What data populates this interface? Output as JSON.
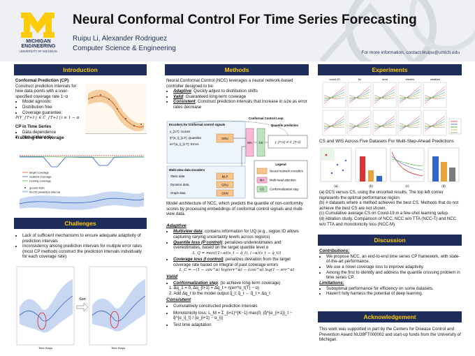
{
  "header": {
    "logo_line1": "MICHIGAN",
    "logo_line2": "ENGINEERING",
    "logo_line3": "UNIVERSITY OF MICHIGAN",
    "title": "Neural Conformal Control For Time Series Forecasting",
    "authors": "Ruipu Li, Alexander Rodriguez",
    "affiliation": "Computer Science & Engineering",
    "contact": "For more information, contact liruipu@umich.edu"
  },
  "introduction": {
    "heading": "Introduction",
    "cp_label": "Conformal Prediction (CP)",
    "cp_text": ": Construct prediction intervals for new data points with a user-specified coverage rate 1−α",
    "cp_bullets": [
      "Model agnostic",
      "Distribution free",
      "Coverage guarantee:"
    ],
    "guarantee": "P(Y_{T+1} ∈ Ĉ_{T+1}) ≥ 1 − α",
    "ts_label": "CP in Time Series",
    "ts_bullets": [
      "Data dependence",
      "Non-stationarity"
    ],
    "tracking_heading": "Tracking the coverage",
    "tracking_legend": [
      "target coverage",
      "realized coverage",
      "running coverage"
    ],
    "interval_legend": [
      "ground truth",
      "90.0% prediction interval"
    ]
  },
  "challenges": {
    "heading": "Challenges",
    "bullets": [
      "Lack of sufficient mechanisms to ensure adequate adaptivity of prediction intervals",
      "Inconsistency among prediction intervals for multiple error rates (most CP methods construct the prediction intervals individually for each coverage rate)."
    ],
    "sort_label": "Sort",
    "x_label": "Time Steps"
  },
  "methods": {
    "heading": "Methods",
    "intro": "Neural Conformal Control (NCC) leverages a neural network-based controller designed to be:",
    "properties": [
      {
        "name": "Adaptive",
        "text": ": Quickly adjust to distribution shifts"
      },
      {
        "name": "Valid",
        "text": ": Guaranteed long-term coverage"
      },
      {
        "name": "Consistent",
        "text": ": Construct prediction intervals that increase in size as error rates decrease"
      }
    ],
    "diagram": {
      "encoders_title": "Encoders for conformal control signals",
      "loop_title": "Conformal Control Loop",
      "quantile_title": "Quantile prediction",
      "signals": [
        "s_{1:T}: Scores",
        "q̂^{α_i}_{1:T}: Quantiles",
        "err^{α_i}_{1:T}: Errors"
      ],
      "gru": "GRU",
      "ma": "MA",
      "cs": "CS",
      "output": "y_{T+1} ∈ Ĉ_{T+1}",
      "multiview_title": "Multi-view data encoders",
      "data_types": [
        "Static data",
        "Dynamic data",
        "Graph data"
      ],
      "encoders": [
        "MLP",
        "GRU",
        "GNN"
      ],
      "legend_title": "Legend",
      "legend": [
        "Neural network encoders",
        "Multi-head attention",
        "Conformalization step"
      ]
    },
    "caption": "Model architecture of NCC, which predicts the quantile of non-conformity scores by processing embeddings of conformal control signals and multi-view data.",
    "adaptive": {
      "heading": "Adaptive",
      "items": [
        {
          "name": "Multiview data",
          "text": ": contains information for UQ (e.g., region ID allows capturing varying uncertainty levels across regions)"
        },
        {
          "name": "Quantile loss (P control)",
          "text": ": penalizes underestimates and overestimates, based on the target quantile level α"
        },
        {
          "name": "Coverage loss (I control)",
          "text": ": penalizes deviation from the target coverage rate based on integral of past coverage errors"
        }
      ],
      "quantile_formula": "L_Q = max((1−α)(s_t − q̂_t), (−α)(s_t − q̂_t))",
      "coverage_formula": "L_C = −(1 − cov^α) log(err^α) − (cov^α) log(1 − err^α)"
    },
    "valid": {
      "heading": "Valid",
      "step_name": "Conformalization step",
      "step_text": ": (to achieve long-term coverage)",
      "steps": [
        "1. Δq_1 = 0, Δq_{t+1} = Δq_t + η(err^α_t(T) − α)",
        "2. Add Δq_t to the model output q̂_t: q̂_t ← q̂_t + Δq_t"
      ]
    },
    "consistent": {
      "heading": "Consistent",
      "bullets": [
        "Cumulatively constructed prediction intervals",
        "Monotonicity loss: L_M = Σ_{i=1}^{K−1} max(0, (q̂^{α_{i+1}}_t − q̂^{α_i}_t) / (α_{i+1} − α_i))",
        "Test time adaptation"
      ]
    }
  },
  "experiments": {
    "heading": "Experiments",
    "datasets": [
      "covid-19",
      "flu",
      "smd",
      "electric",
      "weather"
    ],
    "grid_caption": "CS and WIS Across Five Datasets For Multi-Step-Ahead Predictions",
    "panel_labels": [
      "(a)",
      "(b)",
      "(c)",
      "(d)"
    ],
    "notes": [
      "(a) DCS versus CS, using the unsorted results. The top left corner represents the optimal performance region.",
      "(b) # datasets where a method achieves the best CS. Methods that do not achieve the best CS are not shown.",
      "(c) Cumulative average CS on Covid-19 in a few-shot learning setup.",
      "(d) Ablation study. Comparison of NCC, NCC w/o TTA (NCC-T) and NCC w/o TTA and monotonicity loss (NCC-M)."
    ]
  },
  "discussion": {
    "heading": "Discussion",
    "contributions_label": "Contributions:",
    "contributions": [
      "We propose NCC, an end-to-end time series CP framework, with state-of-the-art performance.",
      "We use a novel coverage loss to improve adaptivity.",
      "Among the first to identify and address the quantile crossing problem in time series CP."
    ],
    "limitations_label": "Limitations:",
    "limitations": [
      "Suboptimal performance for efficiency on some datasets.",
      "Haven't fully harness the potential of deep learning."
    ]
  },
  "acknowledgement": {
    "heading": "Acknowledgement",
    "text": "This work was supported in part by the Centers for Disease Control and Prevention Award NU38FT000002 and start-up funds from the University of Michigan."
  }
}
